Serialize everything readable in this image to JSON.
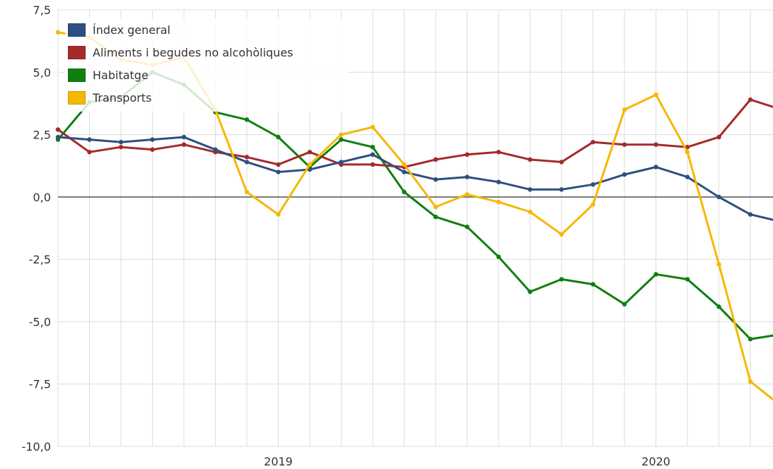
{
  "chart_data": {
    "type": "line",
    "title": "",
    "xlabel": "",
    "ylabel": "",
    "ylim": [
      -10,
      7.5
    ],
    "yticks": [
      "7,5",
      "5,0",
      "2,5",
      "0,0",
      "-2,5",
      "-5,0",
      "-7,5",
      "-10,0"
    ],
    "ytick_values": [
      7.5,
      5,
      2.5,
      0,
      -2.5,
      -5,
      -7.5,
      -10
    ],
    "x_months": [
      "2018-06",
      "2018-07",
      "2018-08",
      "2018-09",
      "2018-10",
      "2018-11",
      "2018-12",
      "2019-01",
      "2019-02",
      "2019-03",
      "2019-04",
      "2019-05",
      "2019-06",
      "2019-07",
      "2019-08",
      "2019-09",
      "2019-10",
      "2019-11",
      "2019-12",
      "2020-01",
      "2020-02",
      "2020-03",
      "2020-04",
      "2020-05",
      "2020-06"
    ],
    "xtick_labels": [
      {
        "label": "2019",
        "month": "2019-01"
      },
      {
        "label": "2020",
        "month": "2020-01"
      }
    ],
    "grid": true,
    "legend_position": "top-left",
    "series": [
      {
        "name": "Índex general",
        "color": "#2d4f82",
        "values": [
          2.4,
          2.3,
          2.2,
          2.3,
          2.4,
          1.9,
          1.4,
          1.0,
          1.1,
          1.4,
          1.7,
          1.0,
          0.7,
          0.8,
          0.6,
          0.3,
          0.3,
          0.5,
          0.9,
          1.2,
          0.8,
          0.0,
          -0.7,
          -1.0
        ]
      },
      {
        "name": "Aliments i begudes no alcohòliques",
        "color": "#a52a2a",
        "values": [
          2.7,
          1.8,
          2.0,
          1.9,
          2.1,
          1.8,
          1.6,
          1.3,
          1.8,
          1.3,
          1.3,
          1.2,
          1.5,
          1.7,
          1.8,
          1.5,
          1.4,
          2.2,
          2.1,
          2.1,
          2.0,
          2.4,
          3.9,
          3.5
        ]
      },
      {
        "name": "Habitatge",
        "color": "#0f7f10",
        "values": [
          2.3,
          3.8,
          4.0,
          5.0,
          4.5,
          3.4,
          3.1,
          2.4,
          1.2,
          2.3,
          2.0,
          0.2,
          -0.8,
          -1.2,
          -2.4,
          -3.8,
          -3.3,
          -3.5,
          -4.3,
          -3.1,
          -3.3,
          -4.4,
          -5.7,
          -5.5
        ]
      },
      {
        "name": "Transports",
        "color": "#f5b800",
        "values": [
          6.6,
          6.4,
          5.5,
          5.3,
          5.6,
          3.5,
          0.2,
          -0.7,
          1.3,
          2.5,
          2.8,
          1.3,
          -0.4,
          0.1,
          -0.2,
          -0.6,
          -1.5,
          -0.3,
          3.5,
          4.1,
          1.8,
          -2.7,
          -7.4,
          -8.4
        ]
      }
    ]
  }
}
